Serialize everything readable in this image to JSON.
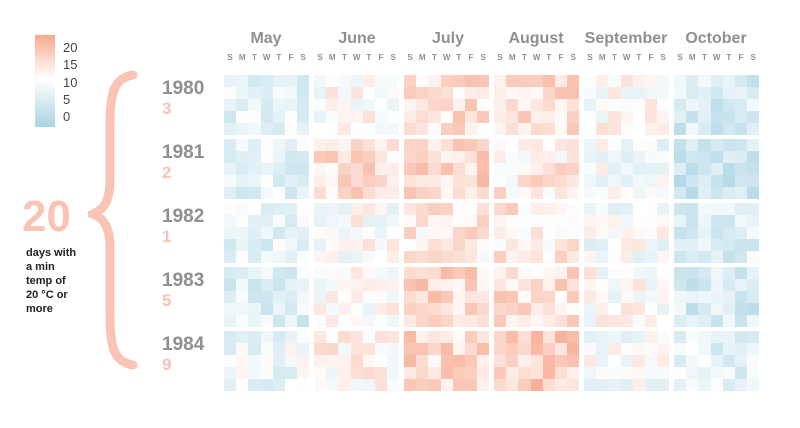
{
  "legend": {
    "ticks": [
      "20",
      "15",
      "10",
      "5",
      "0"
    ],
    "colors": {
      "hot": "#f7a98f",
      "mid": "#ffffff",
      "cold": "#a9d4e3"
    }
  },
  "summary": {
    "total": "20",
    "caption_lines": [
      "days with",
      "a min",
      "temp of",
      "20 °C or",
      "more"
    ]
  },
  "day_letters": [
    "S",
    "M",
    "T",
    "W",
    "T",
    "F",
    "S"
  ],
  "chart_data": {
    "type": "heatmap",
    "title": "",
    "months": [
      "May",
      "June",
      "July",
      "August",
      "September",
      "October"
    ],
    "years": [
      {
        "year": "1980",
        "days_20_plus": "3"
      },
      {
        "year": "1981",
        "days_20_plus": "2"
      },
      {
        "year": "1982",
        "days_20_plus": "1"
      },
      {
        "year": "1983",
        "days_20_plus": "5"
      },
      {
        "year": "1984",
        "days_20_plus": "9"
      }
    ],
    "color_scale": {
      "min": 0,
      "max": 20
    },
    "typical_min_temp_by_month": {
      "1980": [
        8,
        11,
        14,
        15,
        11,
        6
      ],
      "1981": [
        8,
        14,
        15,
        13,
        10,
        5
      ],
      "1982": [
        8,
        11,
        13,
        13,
        10,
        7
      ],
      "1983": [
        7,
        11,
        15,
        14,
        11,
        6
      ],
      "1984": [
        9,
        12,
        15,
        16,
        10,
        8
      ]
    }
  }
}
